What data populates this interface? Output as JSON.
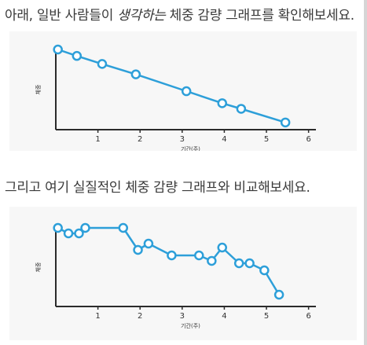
{
  "caption_1": {
    "before": "아래, 일반 사람들이 ",
    "emphasis": "생각하는",
    "after": " 체중 감량 그래프를 확인해보세요."
  },
  "caption_2": "그리고 여기 실질적인 체중 감량 그래프와 비교해보세요.",
  "colors": {
    "line": "#2d9fd9",
    "marker_fill": "#ffffff",
    "axis": "#2b2b2b",
    "panel": "#f7f7f7"
  },
  "chart_data": [
    {
      "type": "line",
      "xlabel": "기간(주)",
      "ylabel": "체중",
      "x_ticks": [
        1,
        2,
        3,
        4,
        5,
        6
      ],
      "xlim": [
        0,
        6.1
      ],
      "ylim": [
        0,
        100
      ],
      "y_tick_labels": false,
      "grid": false,
      "series": [
        {
          "x": [
            0.05,
            0.5,
            1.1,
            1.9,
            3.1,
            3.95,
            4.4,
            5.45
          ],
          "y": [
            100,
            92,
            82,
            69,
            48,
            33,
            26,
            9
          ]
        }
      ]
    },
    {
      "type": "line",
      "xlabel": "기간(주)",
      "ylabel": "체중",
      "x_ticks": [
        1,
        2,
        3,
        4,
        5,
        6
      ],
      "xlim": [
        0,
        6.1
      ],
      "ylim": [
        0,
        100
      ],
      "y_tick_labels": false,
      "grid": false,
      "series": [
        {
          "x": [
            0.05,
            0.3,
            0.55,
            0.7,
            1.6,
            1.95,
            2.2,
            2.75,
            3.4,
            3.7,
            3.95,
            4.35,
            4.6,
            4.95,
            5.3
          ],
          "y": [
            100,
            93,
            93,
            100,
            100,
            72,
            80,
            65,
            65,
            58,
            75,
            55,
            55,
            46,
            15
          ]
        }
      ]
    }
  ]
}
